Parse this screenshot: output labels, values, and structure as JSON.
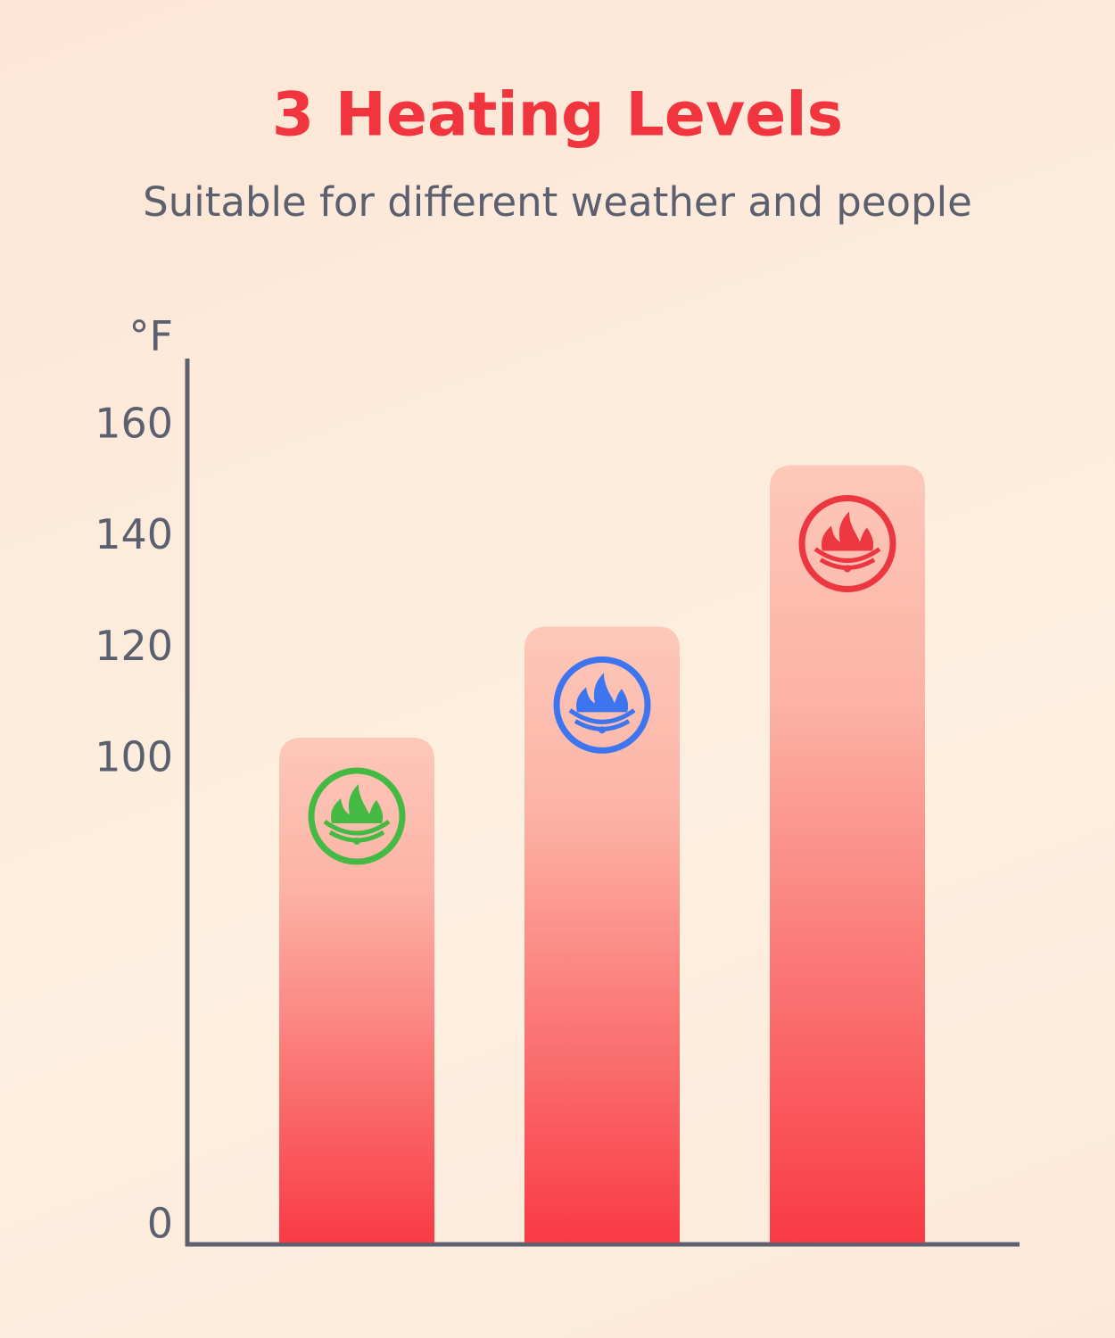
{
  "chart_data": {
    "type": "bar",
    "title": "3 Heating Levels",
    "subtitle": "Suitable for different weather and people",
    "y_label": "°F",
    "categories": [
      null,
      null,
      null
    ],
    "values": [
      104,
      124,
      153
    ],
    "color": "#f93a44",
    "icon_colors": [
      "#44b944",
      "#3d74f0",
      "#ec3640"
    ],
    "ylim": [
      0,
      172
    ],
    "yticks": [
      0,
      100,
      120,
      140,
      160
    ],
    "axis_break": true
  }
}
